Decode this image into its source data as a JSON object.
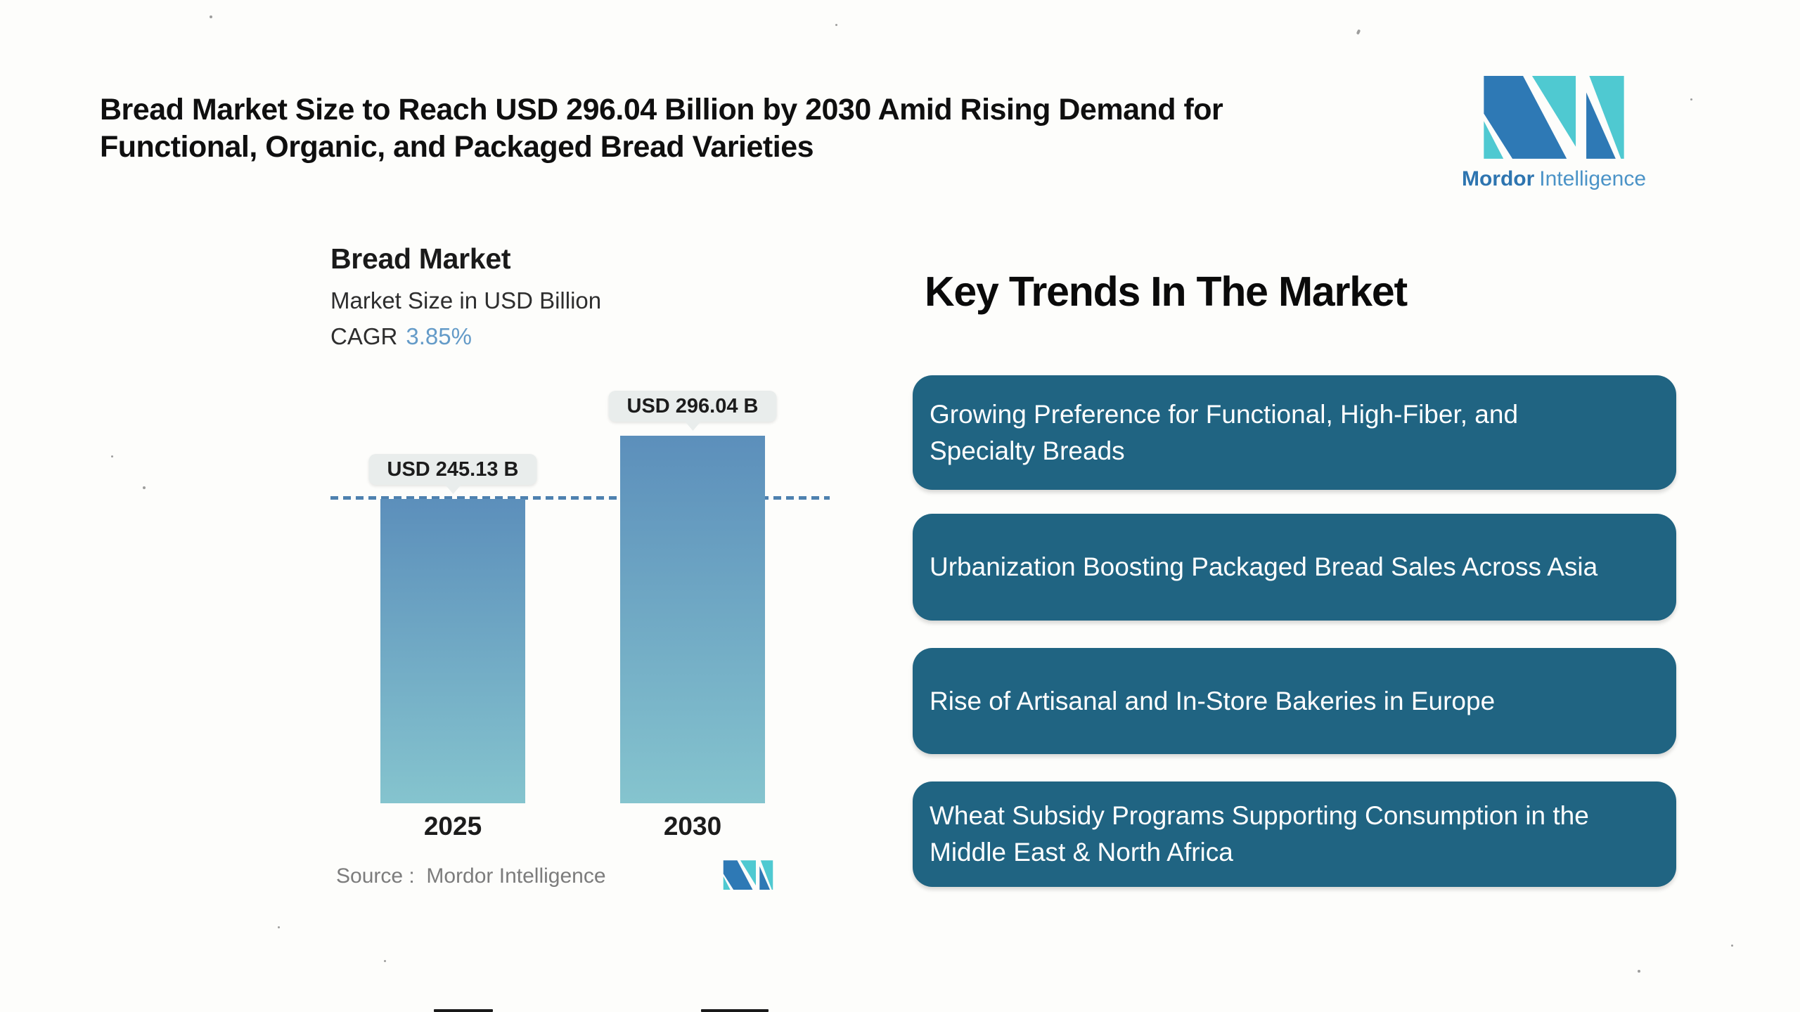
{
  "header": {
    "title_lines": [
      "Bread Market Size to Reach USD 296.04 Billion by 2030 Amid Rising Demand for",
      "Functional, Organic, and Packaged Bread Varieties"
    ]
  },
  "logo": {
    "name_bold": "Mordor",
    "name_regular": "Intelligence",
    "blue": "#2e79b5",
    "teal": "#4fc9d1",
    "text_blue_bold": "#2e75b0",
    "text_blue_light": "#4b93c7"
  },
  "chart": {
    "title": "Bread Market",
    "subtitle": "Market Size in USD Billion",
    "cagr_label": "CAGR",
    "cagr_value": "3.85%",
    "cagr_value_color": "#649bc8",
    "source_label": "Source :  Mordor Intelligence"
  },
  "chart_data": {
    "type": "bar",
    "title": "Bread Market",
    "ylabel": "Market Size in USD Billion",
    "cagr": "3.85%",
    "categories": [
      "2025",
      "2030"
    ],
    "values": [
      245.13,
      296.04
    ],
    "value_labels": [
      "USD 245.13 B",
      "USD 296.04 B"
    ],
    "ylim": [
      0,
      296.04
    ],
    "grid": false,
    "bar_gradient": [
      "#5c8fbb",
      "#85c4ce"
    ],
    "value_pill_bg": "#e9edec",
    "reference_line": {
      "at_value": 245.13,
      "style": "dashed",
      "color": "#4e81af"
    }
  },
  "trends": {
    "heading": "Key Trends In The Market",
    "box_color": "#206482",
    "items": [
      {
        "label": "Growing Preference for Functional, High-Fiber, and\nSpecialty Breads"
      },
      {
        "label": "Urbanization Boosting Packaged Bread Sales Across Asia"
      },
      {
        "label": "Rise of Artisanal and In-Store Bakeries in Europe"
      },
      {
        "label": "Wheat Subsidy Programs Supporting Consumption in the\nMiddle East & North Africa"
      }
    ]
  }
}
